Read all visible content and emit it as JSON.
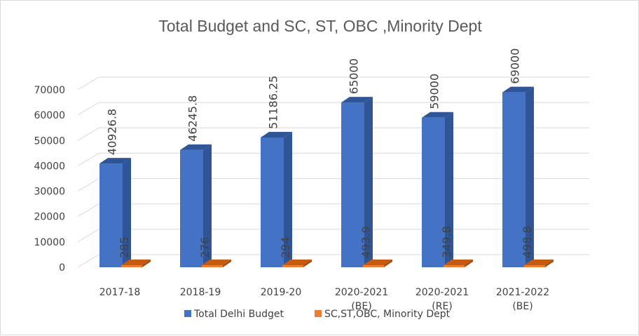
{
  "chart_data": {
    "type": "bar",
    "title": "Total Budget and SC, ST, OBC ,Minority Dept",
    "categories": [
      [
        "2017-18"
      ],
      [
        "2018-19"
      ],
      [
        "2019-20"
      ],
      [
        "2020-2021",
        "(BE)"
      ],
      [
        "2020-2021",
        "(RE)"
      ],
      [
        "2021-2022",
        "(BE)"
      ]
    ],
    "series": [
      {
        "name": "Total Delhi Budget",
        "values": [
          40926.8,
          46245.8,
          51186.25,
          65000,
          59000,
          69000
        ],
        "labels": [
          "40926.8",
          "46245.8",
          "51186.25",
          "65000",
          "59000",
          "69000"
        ],
        "color": "#4472c4"
      },
      {
        "name": "SC,ST,OBC, Minority Dept",
        "values": [
          285,
          276,
          294,
          493.9,
          349.8,
          498.8
        ],
        "labels": [
          "285",
          "276",
          "294",
          "493.9",
          "349.8",
          "498.8"
        ],
        "color": "#ed7d31"
      }
    ],
    "yticks": [
      "0",
      "10000",
      "20000",
      "30000",
      "40000",
      "50000",
      "60000",
      "70000"
    ],
    "ylim": [
      0,
      70000
    ],
    "xlabel": "",
    "ylabel": "",
    "grid": true,
    "legend": "bottom",
    "style": "3d-clustered-column"
  }
}
